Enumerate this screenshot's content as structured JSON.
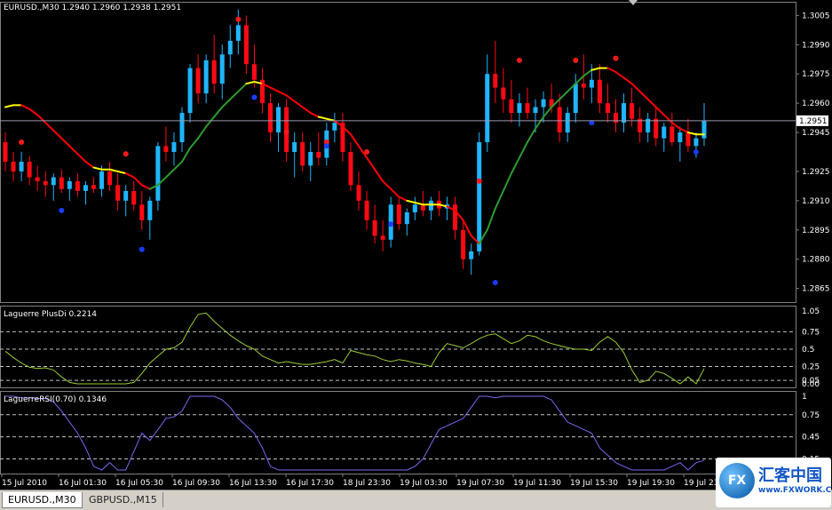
{
  "chart_data": [
    {
      "type": "candlestick",
      "title": "EURUSD.,M30  1.2940 1.2960 1.2938 1.2951",
      "price_label": "1.2951",
      "current_price": 1.2951,
      "ylim": [
        1.2858,
        1.3012
      ],
      "y_ticks": [
        1.3005,
        1.299,
        1.2975,
        1.296,
        1.2945,
        1.2925,
        1.291,
        1.2895,
        1.288,
        1.2865
      ],
      "x_ticks": [
        "15 Jul 2010",
        "16 Jul 01:30",
        "16 Jul 05:30",
        "16 Jul 09:30",
        "16 Jul 13:30",
        "16 Jul 17:30",
        "18 Jul 23:30",
        "19 Jul 03:30",
        "19 Jul 07:30",
        "19 Jul 11:30",
        "19 Jul 15:30",
        "19 Jul 19:30",
        "19 Jul 23:"
      ],
      "bull_color": "#1fb5ff",
      "bear_color": "#ff0a14",
      "candles": [
        [
          1.294,
          1.2945,
          1.2925,
          1.293
        ],
        [
          1.293,
          1.2935,
          1.292,
          1.2925
        ],
        [
          1.2925,
          1.2935,
          1.292,
          1.293
        ],
        [
          1.293,
          1.2933,
          1.2918,
          1.2922
        ],
        [
          1.2922,
          1.2928,
          1.2915,
          1.292
        ],
        [
          1.292,
          1.2925,
          1.2912,
          1.2918
        ],
        [
          1.2918,
          1.2924,
          1.291,
          1.2922
        ],
        [
          1.2922,
          1.2926,
          1.2914,
          1.2916
        ],
        [
          1.2916,
          1.2922,
          1.291,
          1.292
        ],
        [
          1.292,
          1.2924,
          1.2912,
          1.2915
        ],
        [
          1.2915,
          1.292,
          1.2908,
          1.2918
        ],
        [
          1.2918,
          1.2922,
          1.2914,
          1.2916
        ],
        [
          1.2916,
          1.2928,
          1.2912,
          1.2925
        ],
        [
          1.2925,
          1.293,
          1.2915,
          1.2918
        ],
        [
          1.2918,
          1.2924,
          1.2905,
          1.291
        ],
        [
          1.291,
          1.2918,
          1.2902,
          1.2915
        ],
        [
          1.2915,
          1.292,
          1.2905,
          1.2908
        ],
        [
          1.2908,
          1.2915,
          1.2895,
          1.29
        ],
        [
          1.29,
          1.2912,
          1.289,
          1.291
        ],
        [
          1.291,
          1.294,
          1.2905,
          1.2938
        ],
        [
          1.2938,
          1.2948,
          1.293,
          1.2935
        ],
        [
          1.2935,
          1.2945,
          1.2928,
          1.294
        ],
        [
          1.294,
          1.2958,
          1.2935,
          1.2955
        ],
        [
          1.2955,
          1.298,
          1.295,
          1.2978
        ],
        [
          1.2978,
          1.2985,
          1.296,
          1.2965
        ],
        [
          1.2965,
          1.2985,
          1.296,
          1.2982
        ],
        [
          1.2982,
          1.2995,
          1.2965,
          1.297
        ],
        [
          1.297,
          1.299,
          1.2962,
          1.2985
        ],
        [
          1.2985,
          1.3,
          1.2978,
          1.2992
        ],
        [
          1.2992,
          1.3008,
          1.2985,
          1.3
        ],
        [
          1.3,
          1.3005,
          1.2975,
          1.298
        ],
        [
          1.298,
          1.299,
          1.2968,
          1.2972
        ],
        [
          1.2972,
          1.2978,
          1.2955,
          1.296
        ],
        [
          1.296,
          1.2965,
          1.294,
          1.2945
        ],
        [
          1.2945,
          1.296,
          1.2935,
          1.2958
        ],
        [
          1.2958,
          1.2962,
          1.293,
          1.2935
        ],
        [
          1.2935,
          1.2945,
          1.2922,
          1.294
        ],
        [
          1.294,
          1.2945,
          1.2925,
          1.2928
        ],
        [
          1.2928,
          1.294,
          1.292,
          1.2935
        ],
        [
          1.2935,
          1.2945,
          1.2928,
          1.2932
        ],
        [
          1.2932,
          1.295,
          1.2928,
          1.2946
        ],
        [
          1.2946,
          1.2955,
          1.294,
          1.295
        ],
        [
          1.295,
          1.2955,
          1.293,
          1.2935
        ],
        [
          1.2935,
          1.294,
          1.2915,
          1.2918
        ],
        [
          1.2918,
          1.2925,
          1.2905,
          1.291
        ],
        [
          1.291,
          1.2915,
          1.2895,
          1.29
        ],
        [
          1.29,
          1.2908,
          1.2888,
          1.2892
        ],
        [
          1.2892,
          1.29,
          1.2884,
          1.289
        ],
        [
          1.289,
          1.2912,
          1.2886,
          1.2908
        ],
        [
          1.2908,
          1.2912,
          1.2895,
          1.2898
        ],
        [
          1.2898,
          1.2906,
          1.2892,
          1.2904
        ],
        [
          1.2904,
          1.2912,
          1.29,
          1.2908
        ],
        [
          1.2908,
          1.2915,
          1.2902,
          1.2905
        ],
        [
          1.2905,
          1.2912,
          1.29,
          1.291
        ],
        [
          1.291,
          1.2915,
          1.2902,
          1.2906
        ],
        [
          1.2906,
          1.2912,
          1.29,
          1.2908
        ],
        [
          1.2908,
          1.2912,
          1.289,
          1.2895
        ],
        [
          1.2895,
          1.29,
          1.2875,
          1.288
        ],
        [
          1.288,
          1.2888,
          1.2872,
          1.2884
        ],
        [
          1.2884,
          1.2945,
          1.2882,
          1.294
        ],
        [
          1.294,
          1.2985,
          1.2935,
          1.2975
        ],
        [
          1.2975,
          1.2992,
          1.296,
          1.2968
        ],
        [
          1.2968,
          1.2978,
          1.2955,
          1.2962
        ],
        [
          1.2962,
          1.2972,
          1.295,
          1.2955
        ],
        [
          1.2955,
          1.2965,
          1.2948,
          1.296
        ],
        [
          1.296,
          1.2968,
          1.2952,
          1.2955
        ],
        [
          1.2955,
          1.2962,
          1.2945,
          1.2958
        ],
        [
          1.2958,
          1.2966,
          1.295,
          1.2962
        ],
        [
          1.2962,
          1.297,
          1.2955,
          1.2958
        ],
        [
          1.2958,
          1.2965,
          1.294,
          1.2945
        ],
        [
          1.2945,
          1.2958,
          1.294,
          1.2955
        ],
        [
          1.2955,
          1.2975,
          1.295,
          1.297
        ],
        [
          1.297,
          1.2985,
          1.2962,
          1.2968
        ],
        [
          1.2968,
          1.298,
          1.296,
          1.2972
        ],
        [
          1.2972,
          1.298,
          1.2955,
          1.296
        ],
        [
          1.296,
          1.297,
          1.295,
          1.2955
        ],
        [
          1.2955,
          1.2962,
          1.2945,
          1.295
        ],
        [
          1.295,
          1.2965,
          1.2945,
          1.296
        ],
        [
          1.296,
          1.2968,
          1.2948,
          1.2952
        ],
        [
          1.2952,
          1.2958,
          1.294,
          1.2945
        ],
        [
          1.2945,
          1.2955,
          1.294,
          1.2952
        ],
        [
          1.2952,
          1.2958,
          1.2938,
          1.2942
        ],
        [
          1.2942,
          1.295,
          1.2935,
          1.2948
        ],
        [
          1.2948,
          1.2955,
          1.2938,
          1.294
        ],
        [
          1.294,
          1.2948,
          1.293,
          1.2945
        ],
        [
          1.2945,
          1.2952,
          1.2935,
          1.2938
        ],
        [
          1.2938,
          1.2945,
          1.2932,
          1.2942
        ],
        [
          1.2942,
          1.296,
          1.2938,
          1.2951
        ]
      ],
      "laguerre_line": [
        1.2958,
        1.2959,
        1.2959,
        1.2957,
        1.2954,
        1.295,
        1.2946,
        1.2942,
        1.2938,
        1.2934,
        1.293,
        1.2927,
        1.2926,
        1.2926,
        1.2925,
        1.2924,
        1.2922,
        1.2918,
        1.2916,
        1.2918,
        1.2922,
        1.2926,
        1.293,
        1.2937,
        1.2942,
        1.2948,
        1.2953,
        1.2958,
        1.2962,
        1.2966,
        1.297,
        1.2971,
        1.297,
        1.2968,
        1.2966,
        1.2964,
        1.2961,
        1.2958,
        1.2955,
        1.2953,
        1.2952,
        1.2951,
        1.2948,
        1.2944,
        1.2938,
        1.2932,
        1.2926,
        1.292,
        1.2916,
        1.2912,
        1.291,
        1.2909,
        1.2908,
        1.2908,
        1.2908,
        1.2907,
        1.2905,
        1.29,
        1.2892,
        1.2888,
        1.2895,
        1.2906,
        1.2915,
        1.2924,
        1.2932,
        1.294,
        1.2947,
        1.2953,
        1.2958,
        1.2962,
        1.2966,
        1.297,
        1.2974,
        1.2977,
        1.2978,
        1.2978,
        1.2976,
        1.2973,
        1.297,
        1.2966,
        1.2962,
        1.2958,
        1.2954,
        1.295,
        1.2947,
        1.2945,
        1.2944,
        1.2944
      ],
      "dots_red": [
        [
          2,
          1.294
        ],
        [
          15,
          1.2934
        ],
        [
          29,
          1.3003
        ],
        [
          35,
          1.2945
        ],
        [
          40,
          1.294
        ],
        [
          45,
          1.2935
        ],
        [
          59,
          1.292
        ],
        [
          64,
          1.2982
        ],
        [
          71,
          1.2982
        ],
        [
          76,
          1.2983
        ]
      ],
      "dots_blue": [
        [
          7,
          1.2905
        ],
        [
          17,
          1.2885
        ],
        [
          31,
          1.2963
        ],
        [
          40,
          1.2938
        ],
        [
          48,
          1.2898
        ],
        [
          61,
          1.2868
        ],
        [
          73,
          1.295
        ],
        [
          86,
          1.2935
        ]
      ]
    },
    {
      "type": "line",
      "title": "Laguerre PlusDi 0.2214",
      "ylim": [
        0,
        1.05
      ],
      "y_ticks": [
        1.05,
        0.75,
        0.5,
        0.25,
        0.05,
        0.0
      ],
      "y_tick_labels": [
        "1.05",
        "0.75",
        "0.5",
        "0.25",
        "0.05",
        "0.00"
      ],
      "grid_levels": [
        0.75,
        0.5,
        0.25,
        0.05
      ],
      "color": "#9acd32",
      "values": [
        0.47,
        0.38,
        0.3,
        0.24,
        0.22,
        0.23,
        0.2,
        0.1,
        0.02,
        0.0,
        0.0,
        0.0,
        0.0,
        0.0,
        0.0,
        0.0,
        0.02,
        0.15,
        0.3,
        0.4,
        0.5,
        0.52,
        0.6,
        0.82,
        1.0,
        1.02,
        0.9,
        0.8,
        0.7,
        0.62,
        0.55,
        0.5,
        0.4,
        0.35,
        0.3,
        0.32,
        0.3,
        0.28,
        0.28,
        0.3,
        0.32,
        0.35,
        0.3,
        0.48,
        0.45,
        0.42,
        0.4,
        0.35,
        0.32,
        0.35,
        0.33,
        0.3,
        0.28,
        0.25,
        0.45,
        0.58,
        0.55,
        0.52,
        0.58,
        0.65,
        0.7,
        0.72,
        0.65,
        0.58,
        0.62,
        0.7,
        0.68,
        0.62,
        0.58,
        0.55,
        0.52,
        0.5,
        0.5,
        0.48,
        0.6,
        0.68,
        0.6,
        0.45,
        0.2,
        0.02,
        0.05,
        0.18,
        0.15,
        0.08,
        0.0,
        0.1,
        0.0,
        0.22
      ]
    },
    {
      "type": "line",
      "title": "LaguerreRSI(0.70) 0.1346",
      "ylim": [
        0,
        1
      ],
      "y_ticks": [
        1,
        0.75,
        0.45,
        0.15
      ],
      "y_tick_labels": [
        "1",
        "0.75",
        "0.45",
        "0.15"
      ],
      "grid_levels": [
        0.75,
        0.45,
        0.15
      ],
      "color": "#7b68ee",
      "values": [
        1.0,
        1.0,
        0.98,
        0.98,
        0.97,
        0.97,
        0.92,
        0.8,
        0.65,
        0.5,
        0.3,
        0.05,
        0.0,
        0.1,
        0.0,
        0.0,
        0.25,
        0.5,
        0.4,
        0.55,
        0.7,
        0.72,
        0.8,
        1.0,
        1.0,
        1.0,
        1.0,
        0.95,
        0.85,
        0.7,
        0.6,
        0.5,
        0.3,
        0.05,
        0.0,
        0.0,
        0.0,
        0.0,
        0.0,
        0.0,
        0.0,
        0.0,
        0.0,
        0.0,
        0.0,
        0.0,
        0.0,
        0.0,
        0.0,
        0.0,
        0.0,
        0.05,
        0.15,
        0.35,
        0.55,
        0.6,
        0.65,
        0.7,
        0.85,
        1.0,
        1.0,
        0.98,
        1.0,
        1.0,
        1.0,
        1.0,
        1.0,
        1.0,
        0.95,
        0.8,
        0.65,
        0.6,
        0.55,
        0.5,
        0.3,
        0.2,
        0.1,
        0.05,
        0.0,
        0.0,
        0.0,
        0.0,
        0.0,
        0.05,
        0.1,
        0.0,
        0.1,
        0.13
      ]
    }
  ],
  "tabs": [
    {
      "label": "EURUSD.,M30",
      "active": true
    },
    {
      "label": "GBPUSD.,M15",
      "active": false
    }
  ],
  "logo": {
    "fx": "FX",
    "name": "汇客中国",
    "url": "www.FXWORK.CN"
  }
}
